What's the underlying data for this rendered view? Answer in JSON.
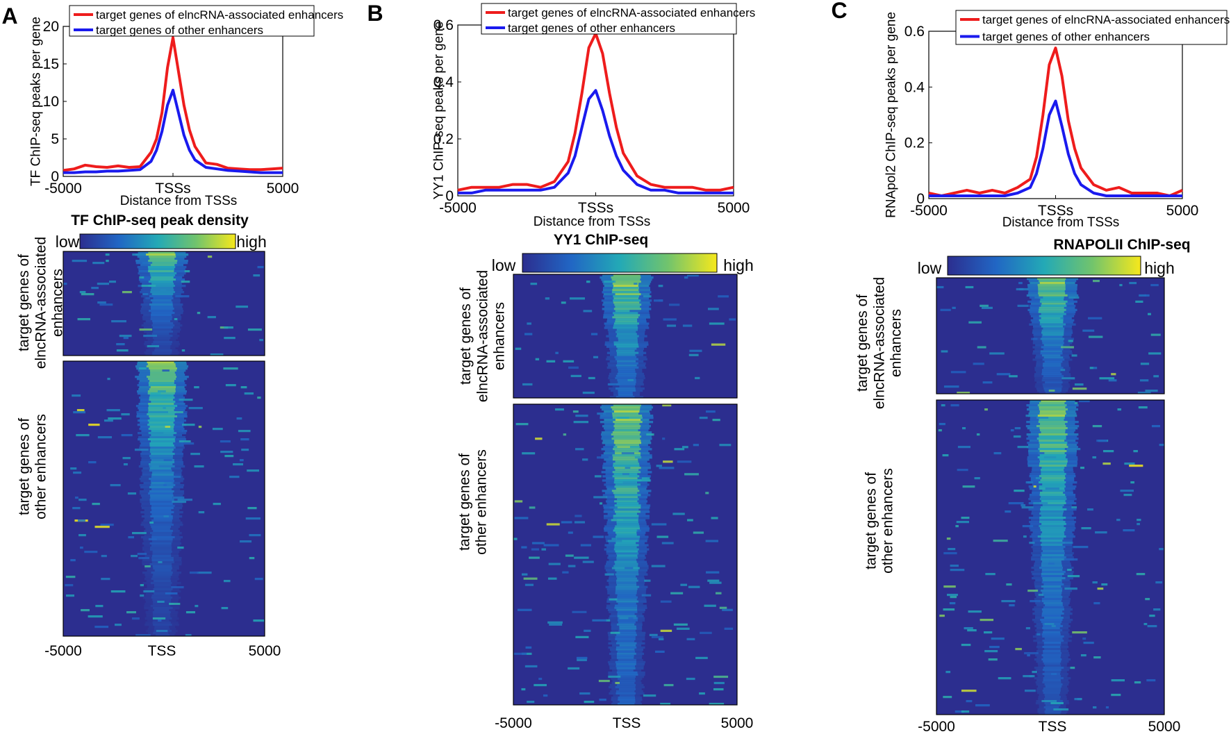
{
  "colors": {
    "elnc_line": "#ee1c1c",
    "other_line": "#1a1aee",
    "viridis_low": "#2c2e8f",
    "viridis_mid": "#23a9b6",
    "viridis_high": "#f6e81c"
  },
  "chart_data": [
    {
      "panel": "A",
      "type": "line",
      "ylabel": "TF ChIP-seq peaks per gene",
      "xlabel": "Distance from TSSs",
      "xlim": [
        -5000,
        5000
      ],
      "ylim": [
        0,
        20
      ],
      "xticks": [
        "-5000",
        "TSSs",
        "5000"
      ],
      "yticks": [
        "0",
        "5",
        "10",
        "15",
        "20"
      ],
      "legend": [
        "target genes of elncRNA-associated enhancers",
        "target genes of other enhancers"
      ],
      "x": [
        -5000,
        -4500,
        -4000,
        -3500,
        -3000,
        -2500,
        -2000,
        -1500,
        -1000,
        -750,
        -500,
        -250,
        0,
        250,
        500,
        750,
        1000,
        1500,
        2000,
        2500,
        3000,
        3500,
        4000,
        4500,
        5000
      ],
      "series": [
        {
          "name": "target genes of elncRNA-associated enhancers",
          "values": [
            0.8,
            1.0,
            1.5,
            1.3,
            1.2,
            1.4,
            1.2,
            1.3,
            3.2,
            5.0,
            8.5,
            14.5,
            18.5,
            14.0,
            9.5,
            6.2,
            4.0,
            1.8,
            1.6,
            1.1,
            1.0,
            0.9,
            0.9,
            1.0,
            1.1
          ]
        },
        {
          "name": "target genes of other enhancers",
          "values": [
            0.5,
            0.5,
            0.6,
            0.6,
            0.7,
            0.7,
            0.8,
            0.9,
            2.0,
            3.5,
            6.0,
            9.5,
            11.5,
            8.5,
            5.5,
            3.5,
            2.2,
            1.2,
            1.0,
            0.8,
            0.7,
            0.6,
            0.5,
            0.5,
            0.5
          ]
        }
      ],
      "heatmap": {
        "title": "TF ChIP-seq peak density",
        "colorbar_low": "low",
        "colorbar_high": "high",
        "group_labels": [
          "target genes of elncRNA-associated enhancers",
          "target genes of other enhancers"
        ],
        "xticks": [
          "-5000",
          "TSS",
          "5000"
        ]
      }
    },
    {
      "panel": "B",
      "type": "line",
      "ylabel": "YY1 ChIP-seq peaks per gene",
      "xlabel": "Distance from TSSs",
      "xlim": [
        -5000,
        5000
      ],
      "ylim": [
        0,
        0.6
      ],
      "xticks": [
        "-5000",
        "TSSs",
        "5000"
      ],
      "yticks": [
        "0",
        "0.2",
        "0.4",
        "0.6"
      ],
      "legend": [
        "target genes of elncRNA-associated enhancers",
        "target genes of other enhancers"
      ],
      "x": [
        -5000,
        -4500,
        -4000,
        -3500,
        -3000,
        -2500,
        -2000,
        -1500,
        -1000,
        -750,
        -500,
        -250,
        0,
        250,
        500,
        750,
        1000,
        1500,
        2000,
        2500,
        3000,
        3500,
        4000,
        4500,
        5000
      ],
      "series": [
        {
          "name": "target genes of elncRNA-associated enhancers",
          "values": [
            0.02,
            0.03,
            0.03,
            0.03,
            0.04,
            0.04,
            0.03,
            0.05,
            0.12,
            0.22,
            0.36,
            0.52,
            0.57,
            0.5,
            0.36,
            0.24,
            0.15,
            0.07,
            0.04,
            0.03,
            0.03,
            0.03,
            0.02,
            0.02,
            0.03
          ]
        },
        {
          "name": "target genes of other enhancers",
          "values": [
            0.01,
            0.01,
            0.02,
            0.02,
            0.02,
            0.02,
            0.02,
            0.03,
            0.08,
            0.14,
            0.24,
            0.34,
            0.37,
            0.3,
            0.21,
            0.14,
            0.09,
            0.04,
            0.02,
            0.02,
            0.01,
            0.01,
            0.01,
            0.01,
            0.01
          ]
        }
      ],
      "heatmap": {
        "title": "YY1 ChIP-seq",
        "colorbar_low": "low",
        "colorbar_high": "high",
        "group_labels": [
          "target genes of elncRNA-associated enhancers",
          "target genes of other enhancers"
        ],
        "xticks": [
          "-5000",
          "TSS",
          "5000"
        ]
      }
    },
    {
      "panel": "C",
      "type": "line",
      "ylabel": "RNApol2 ChIP-seq peaks per gene",
      "xlabel": "Distance from TSSs",
      "xlim": [
        -5000,
        5000
      ],
      "ylim": [
        0,
        0.6
      ],
      "xticks": [
        "-5000",
        "TSSs",
        "5000"
      ],
      "yticks": [
        "0",
        "0.2",
        "0.4",
        "0.6"
      ],
      "legend": [
        "target genes of elncRNA-associated enhancers",
        "target genes of other enhancers"
      ],
      "x": [
        -5000,
        -4500,
        -4000,
        -3500,
        -3000,
        -2500,
        -2000,
        -1500,
        -1000,
        -750,
        -500,
        -250,
        0,
        250,
        500,
        750,
        1000,
        1500,
        2000,
        2500,
        3000,
        3500,
        4000,
        4500,
        5000
      ],
      "series": [
        {
          "name": "target genes of elncRNA-associated enhancers",
          "values": [
            0.02,
            0.01,
            0.02,
            0.03,
            0.02,
            0.03,
            0.02,
            0.04,
            0.07,
            0.15,
            0.3,
            0.48,
            0.54,
            0.44,
            0.28,
            0.18,
            0.11,
            0.05,
            0.03,
            0.04,
            0.02,
            0.02,
            0.02,
            0.01,
            0.03
          ]
        },
        {
          "name": "target genes of other enhancers",
          "values": [
            0.01,
            0.01,
            0.01,
            0.01,
            0.01,
            0.01,
            0.01,
            0.02,
            0.04,
            0.09,
            0.18,
            0.3,
            0.35,
            0.26,
            0.16,
            0.09,
            0.05,
            0.02,
            0.01,
            0.01,
            0.01,
            0.01,
            0.01,
            0.01,
            0.01
          ]
        }
      ],
      "heatmap": {
        "title": "RNAPOLII ChIP-seq",
        "colorbar_low": "low",
        "colorbar_high": "high",
        "group_labels": [
          "target genes of elncRNA-associated enhancers",
          "target genes of other enhancers"
        ],
        "xticks": [
          "-5000",
          "TSS",
          "5000"
        ]
      }
    }
  ]
}
